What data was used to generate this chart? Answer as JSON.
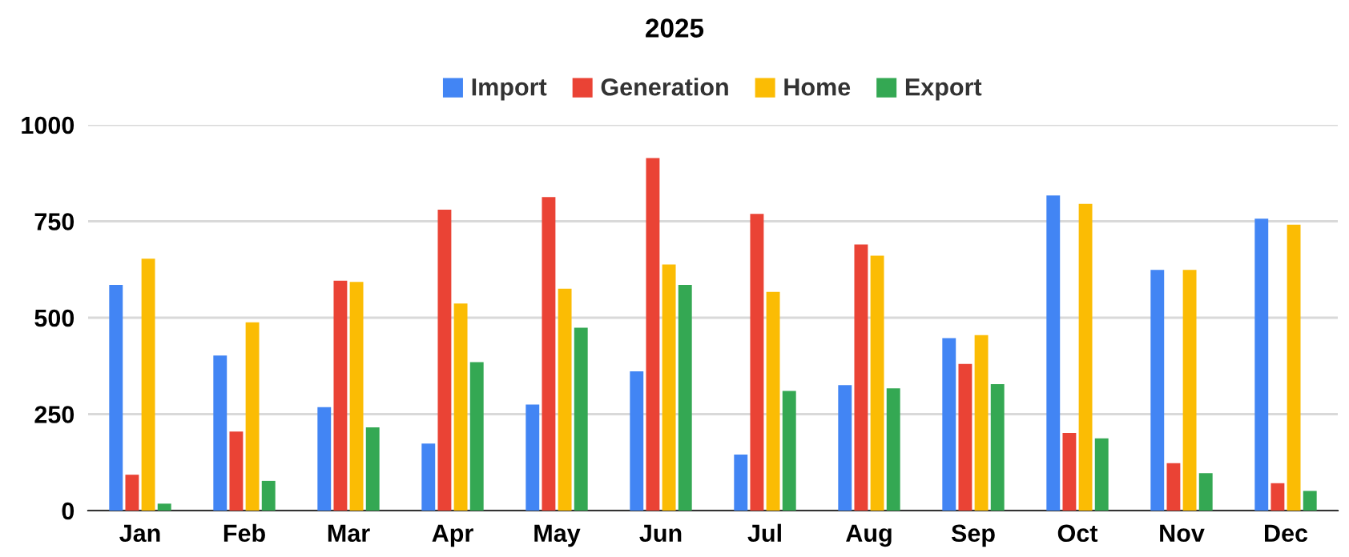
{
  "chart_data": {
    "type": "bar",
    "title": "2025",
    "categories": [
      "Jan",
      "Feb",
      "Mar",
      "Apr",
      "May",
      "Jun",
      "Jul",
      "Aug",
      "Sep",
      "Oct",
      "Nov",
      "Dec"
    ],
    "series": [
      {
        "name": "Import",
        "color": "#4285f4",
        "values": [
          585,
          402,
          268,
          174,
          275,
          361,
          145,
          325,
          447,
          817,
          624,
          757
        ]
      },
      {
        "name": "Generation",
        "color": "#ea4335",
        "values": [
          93,
          205,
          596,
          780,
          813,
          914,
          769,
          690,
          380,
          201,
          123,
          71
        ]
      },
      {
        "name": "Home",
        "color": "#fbbc04",
        "values": [
          653,
          488,
          593,
          537,
          575,
          638,
          567,
          661,
          455,
          795,
          624,
          741
        ]
      },
      {
        "name": "Export",
        "color": "#34a853",
        "values": [
          18,
          77,
          216,
          385,
          474,
          585,
          310,
          317,
          328,
          187,
          97,
          51
        ]
      }
    ],
    "ylim": [
      0,
      1000
    ],
    "yticks": [
      0,
      250,
      500,
      750,
      1000
    ],
    "grid": "y",
    "legend": "top"
  }
}
